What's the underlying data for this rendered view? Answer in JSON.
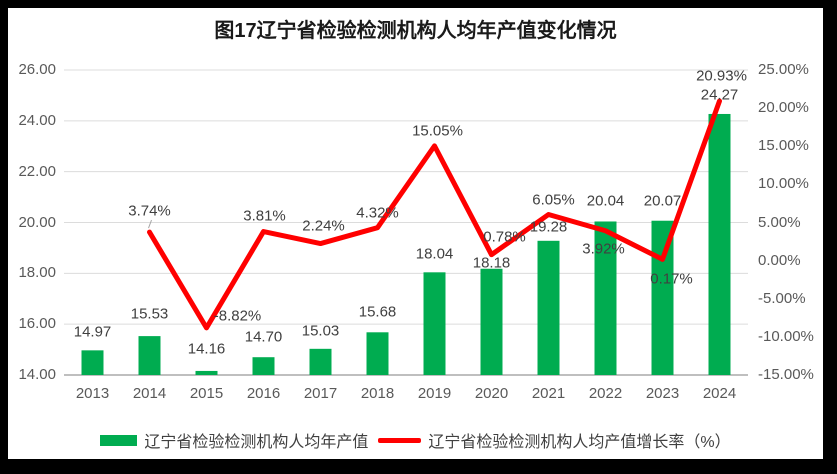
{
  "title": "图17辽宁省检验检测机构人均年产值变化情况",
  "legend": [
    {
      "type": "bar",
      "color": "#00AC50",
      "label": "辽宁省检验检测机构人均年产值"
    },
    {
      "type": "line",
      "color": "#FF0000",
      "label": "辽宁省检验检测机构人均产值增长率（%）"
    }
  ],
  "colors": {
    "frame": "#000000",
    "panel": "#FFFFFF",
    "bar": "#00AC50",
    "line": "#FF0000",
    "grid": "#DCDCDC",
    "axis_line": "#BFBFBF",
    "tick_text": "#595959",
    "data_label_text": "#404040",
    "leader_line": "#A6A6A6"
  },
  "chart_data": {
    "type": "bar+line combo",
    "title": "图17辽宁省检验检测机构人均年产值变化情况",
    "categories": [
      "2013",
      "2014",
      "2015",
      "2016",
      "2017",
      "2018",
      "2019",
      "2020",
      "2021",
      "2022",
      "2023",
      "2024"
    ],
    "series": [
      {
        "name": "辽宁省检验检测机构人均年产值",
        "type": "bar",
        "axis": "left",
        "color": "#00AC50",
        "values": [
          14.97,
          15.53,
          14.16,
          14.7,
          15.03,
          15.68,
          18.04,
          18.18,
          19.28,
          20.04,
          20.07,
          24.27
        ],
        "labels": [
          "14.97",
          "15.53",
          "14.16",
          "14.70",
          "15.03",
          "15.68",
          "18.04",
          "18.18",
          "19.28",
          "20.04",
          "20.07",
          "24.27"
        ],
        "label_dy": [
          -18,
          -22,
          -22,
          -20,
          -18,
          -20,
          -18,
          -6,
          -14,
          -20,
          -20,
          -19
        ]
      },
      {
        "name": "辽宁省检验检测机构人均产值增长率（%）",
        "type": "line",
        "axis": "right",
        "color": "#FF0000",
        "values": [
          null,
          3.74,
          -8.82,
          3.81,
          2.24,
          4.32,
          15.05,
          0.78,
          6.05,
          3.92,
          0.17,
          20.93
        ],
        "labels": [
          null,
          "3.74%",
          "-8.82%",
          "3.81%",
          "2.24%",
          "4.32%",
          "15.05%",
          "0.78%",
          "6.05%",
          "3.92%",
          "0.17%",
          "20.93%"
        ],
        "label_offsets": [
          null,
          [
            0,
            -21
          ],
          [
            31,
            -12
          ],
          [
            1,
            -16
          ],
          [
            3,
            -18
          ],
          [
            0,
            -15
          ],
          [
            3,
            -15
          ],
          [
            13,
            -18
          ],
          [
            5,
            -14
          ],
          [
            -2,
            18
          ],
          [
            9,
            20
          ],
          [
            2,
            -25
          ]
        ],
        "leader_index": 1
      }
    ],
    "left_axis": {
      "min": 14,
      "max": 26,
      "step": 2,
      "ticks": [
        "26.00",
        "24.00",
        "22.00",
        "20.00",
        "18.00",
        "16.00",
        "14.00"
      ]
    },
    "right_axis": {
      "min": -15,
      "max": 25,
      "step": 5,
      "ticks": [
        "25.00%",
        "20.00%",
        "15.00%",
        "10.00%",
        "5.00%",
        "0.00%",
        "-5.00%",
        "-10.00%",
        "-15.00%"
      ]
    },
    "grid": "horizontal-only",
    "legend_position": "bottom"
  }
}
